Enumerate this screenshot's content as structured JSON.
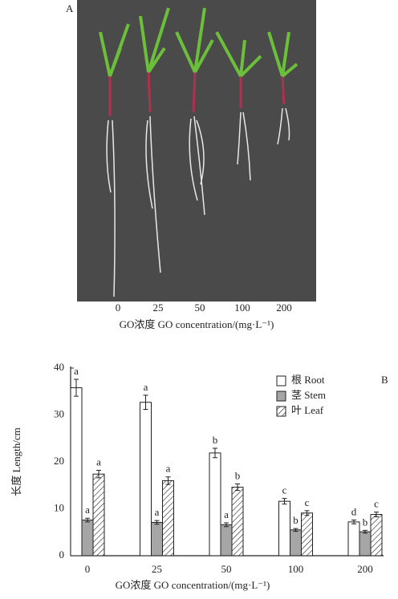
{
  "photo_panel": {
    "label": "A",
    "ticks": [
      "0",
      "25",
      "50",
      "100",
      "200"
    ],
    "x_label": "GO浓度 GO concentration/(mg·L⁻¹)"
  },
  "chart_data": {
    "type": "bar",
    "panel_label": "B",
    "x_label": "GO浓度 GO concentration/(mg·L⁻¹)",
    "y_label": "长度 Length/cm",
    "categories": [
      "0",
      "25",
      "50",
      "100",
      "200"
    ],
    "series": [
      {
        "name": "根 Root",
        "color": "#ffffff",
        "values": [
          35.8,
          32.7,
          21.9,
          11.6,
          7.2
        ],
        "errors": [
          1.8,
          1.5,
          1.0,
          0.6,
          0.4
        ],
        "labels": [
          "a",
          "a",
          "b",
          "c",
          "d"
        ]
      },
      {
        "name": "茎 Stem",
        "color": "#a6a6a6",
        "values": [
          7.6,
          7.1,
          6.6,
          5.5,
          5.1
        ],
        "errors": [
          0.4,
          0.4,
          0.4,
          0.3,
          0.3
        ],
        "labels": [
          "a",
          "a",
          "a",
          "b",
          "b"
        ]
      },
      {
        "name": "叶 Leaf",
        "color": "#ffffff",
        "hatch": true,
        "values": [
          17.4,
          16.0,
          14.6,
          9.1,
          8.8
        ],
        "errors": [
          0.8,
          0.8,
          0.7,
          0.5,
          0.5
        ],
        "labels": [
          "a",
          "a",
          "b",
          "c",
          "c"
        ]
      }
    ],
    "ylim": [
      0,
      40
    ],
    "yticks": [
      0,
      10,
      20,
      30,
      40
    ],
    "legend": "top-right"
  }
}
